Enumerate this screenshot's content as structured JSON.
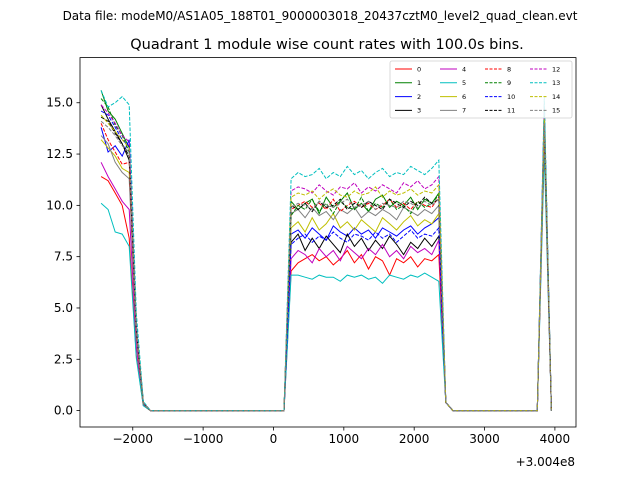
{
  "chart_data": {
    "type": "line",
    "subtitle": "Data file: modeM0/AS1A05_188T01_9000003018_20437cztM0_level2_quad_clean.evt",
    "title": "Quadrant 1 module wise count rates with 100.0s bins.",
    "xlabel": "",
    "ylabel": "",
    "x_offset_label": "+3.004e8",
    "xlim": [
      -2750,
      4300
    ],
    "ylim": [
      -0.8,
      17.2
    ],
    "x_ticks": [
      -2000,
      -1000,
      0,
      1000,
      2000,
      3000,
      4000
    ],
    "x_tick_labels": [
      "−2000",
      "−1000",
      "0",
      "1000",
      "2000",
      "3000",
      "4000"
    ],
    "y_ticks": [
      0,
      2.5,
      5,
      7.5,
      10,
      12.5,
      15
    ],
    "y_tick_labels": [
      "0.0",
      "2.5",
      "5.0",
      "7.5",
      "10.0",
      "12.5",
      "15.0"
    ],
    "legend_position": "top-right",
    "x": [
      -2450,
      -2350,
      -2250,
      -2150,
      -2050,
      -1950,
      -1850,
      -1750,
      -1650,
      -1550,
      -1450,
      -1350,
      -1250,
      -1150,
      -1050,
      -950,
      -850,
      -750,
      -650,
      -550,
      -450,
      -350,
      -250,
      -150,
      -50,
      50,
      150,
      250,
      350,
      450,
      550,
      650,
      750,
      850,
      950,
      1050,
      1150,
      1250,
      1350,
      1450,
      1550,
      1650,
      1750,
      1850,
      1950,
      2050,
      2150,
      2250,
      2350,
      2450,
      2550,
      2650,
      2750,
      2850,
      2950,
      3050,
      3150,
      3250,
      3350,
      3450,
      3550,
      3650,
      3750,
      3850,
      3950
    ],
    "active_segments": [
      {
        "start": 0,
        "end": 4,
        "ramp": [
          3.2,
          0.4,
          0
        ]
      },
      {
        "start": 27,
        "end": 48,
        "ramp": [
          0.4,
          0
        ]
      },
      {
        "start": 63,
        "end": 63,
        "ramp": []
      }
    ],
    "series": [
      {
        "name": "0",
        "color": "#ff0000",
        "dash": "solid",
        "segments": [
          [
            11.4,
            11.2,
            10.6,
            10.0,
            8.4
          ],
          [
            6.8,
            7.2,
            7.4,
            7.6,
            7.3,
            7.5,
            7.1,
            7.4,
            7.8,
            7.2,
            7.6,
            6.9,
            7.5,
            7.3,
            6.6,
            7.4,
            7.2,
            7.5,
            7.0,
            7.4,
            7.3,
            7.6
          ],
          [
            13.8
          ]
        ]
      },
      {
        "name": "1",
        "color": "#008000",
        "dash": "solid",
        "segments": [
          [
            15.6,
            14.6,
            14.2,
            13.5,
            12.8
          ],
          [
            10.2,
            9.8,
            10.1,
            10.3,
            9.6,
            10.4,
            9.9,
            10.2,
            10.6,
            9.8,
            10.1,
            9.7,
            10.3,
            10.5,
            9.9,
            10.2,
            10.0,
            10.4,
            9.8,
            10.3,
            10.1,
            10.6
          ],
          [
            14.8
          ]
        ]
      },
      {
        "name": "2",
        "color": "#0000ff",
        "dash": "solid",
        "segments": [
          [
            13.8,
            12.6,
            12.9,
            12.4,
            13.2
          ],
          [
            8.6,
            8.8,
            8.4,
            8.9,
            8.6,
            8.3,
            9.0,
            8.7,
            8.5,
            8.9,
            8.6,
            8.8,
            8.4,
            8.9,
            8.7,
            8.5,
            8.8,
            9.0,
            8.6,
            8.9,
            9.1,
            9.4
          ],
          [
            14.4
          ]
        ]
      },
      {
        "name": "3",
        "color": "#000000",
        "dash": "solid",
        "segments": [
          [
            14.9,
            14.2,
            13.6,
            13.0,
            12.2
          ],
          [
            8.2,
            8.6,
            7.8,
            8.4,
            7.9,
            8.5,
            8.1,
            7.7,
            8.6,
            8.0,
            8.4,
            7.8,
            8.3,
            7.9,
            8.5,
            8.1,
            7.6,
            8.2,
            7.9,
            8.4,
            8.0,
            8.5
          ],
          [
            14.1
          ]
        ]
      },
      {
        "name": "4",
        "color": "#bf00bf",
        "dash": "solid",
        "segments": [
          [
            12.1,
            11.4,
            10.8,
            10.2,
            9.8
          ],
          [
            7.4,
            7.8,
            7.6,
            7.2,
            7.9,
            7.5,
            7.8,
            7.3,
            8.0,
            7.7,
            7.4,
            7.9,
            7.6,
            8.1,
            7.5,
            7.8,
            7.4,
            8.0,
            7.7,
            7.9,
            7.6,
            8.3
          ],
          [
            13.2
          ]
        ]
      },
      {
        "name": "5",
        "color": "#00bfbf",
        "dash": "solid",
        "segments": [
          [
            10.1,
            9.8,
            8.7,
            8.6,
            8.0
          ],
          [
            6.6,
            6.6,
            6.5,
            6.4,
            6.6,
            6.5,
            6.5,
            6.3,
            6.6,
            6.5,
            6.6,
            6.4,
            6.5,
            6.2,
            6.6,
            6.5,
            6.4,
            6.6,
            6.5,
            6.7,
            6.5,
            6.3
          ],
          [
            12.6
          ]
        ]
      },
      {
        "name": "6",
        "color": "#bfbf00",
        "dash": "solid",
        "segments": [
          [
            13.2,
            12.8,
            12.4,
            11.8,
            11.6
          ],
          [
            8.9,
            9.2,
            8.7,
            9.4,
            8.8,
            9.1,
            9.6,
            8.9,
            9.2,
            8.8,
            9.3,
            9.0,
            8.7,
            9.4,
            9.1,
            8.8,
            9.2,
            9.5,
            9.0,
            9.3,
            9.1,
            9.6
          ],
          [
            14.0
          ]
        ]
      },
      {
        "name": "7",
        "color": "#808080",
        "dash": "solid",
        "segments": [
          [
            13.4,
            13.0,
            12.1,
            11.6,
            11.3
          ],
          [
            9.6,
            9.8,
            9.4,
            9.9,
            9.5,
            9.7,
            9.3,
            9.8,
            9.6,
            9.9,
            9.4,
            9.7,
            9.5,
            9.8,
            9.6,
            9.3,
            9.9,
            9.7,
            9.5,
            9.8,
            9.6,
            10.0
          ],
          [
            13.5
          ]
        ]
      },
      {
        "name": "8",
        "color": "#ff0000",
        "dash": "dashed",
        "segments": [
          [
            14.0,
            13.2,
            12.6,
            12.0,
            12.1
          ],
          [
            9.8,
            10.0,
            10.2,
            9.9,
            10.1,
            9.8,
            10.3,
            9.7,
            10.0,
            10.2,
            9.9,
            10.1,
            9.8,
            10.0,
            10.3,
            9.9,
            10.1,
            9.8,
            10.2,
            10.0,
            9.9,
            10.4
          ],
          [
            13.8
          ]
        ]
      },
      {
        "name": "9",
        "color": "#008000",
        "dash": "dashed",
        "segments": [
          [
            15.2,
            14.8,
            13.9,
            13.4,
            12.6
          ],
          [
            9.5,
            10.0,
            9.8,
            10.3,
            9.7,
            10.1,
            9.6,
            10.2,
            9.9,
            9.8,
            10.4,
            9.7,
            10.1,
            9.9,
            10.3,
            9.8,
            10.0,
            9.6,
            10.2,
            9.9,
            10.1,
            10.5
          ],
          [
            14.5
          ]
        ]
      },
      {
        "name": "10",
        "color": "#0000ff",
        "dash": "dashed",
        "segments": [
          [
            14.6,
            14.4,
            13.8,
            13.2,
            12.9
          ],
          [
            8.1,
            8.4,
            8.6,
            8.2,
            8.5,
            8.3,
            8.7,
            8.4,
            8.2,
            8.6,
            8.5,
            8.3,
            8.7,
            8.4,
            8.6,
            8.2,
            8.5,
            8.8,
            8.4,
            8.6,
            8.5,
            8.9
          ],
          [
            14.2
          ]
        ]
      },
      {
        "name": "11",
        "color": "#000000",
        "dash": "dashed",
        "segments": [
          [
            14.3,
            14.1,
            13.5,
            13.0,
            12.4
          ],
          [
            10.0,
            9.8,
            10.1,
            9.7,
            10.2,
            9.9,
            10.0,
            10.3,
            9.8,
            10.1,
            9.9,
            10.2,
            10.0,
            9.8,
            10.3,
            10.1,
            9.9,
            10.2,
            10.0,
            10.4,
            10.1,
            10.3
          ],
          [
            14.0
          ]
        ]
      },
      {
        "name": "12",
        "color": "#bf00bf",
        "dash": "dashed",
        "segments": [
          [
            14.9,
            14.5,
            14.0,
            13.4,
            13.1
          ],
          [
            10.7,
            10.9,
            10.8,
            10.6,
            11.0,
            10.7,
            10.5,
            10.9,
            10.8,
            11.1,
            10.6,
            10.9,
            10.7,
            11.0,
            10.8,
            10.6,
            11.1,
            10.9,
            11.2,
            10.8,
            11.0,
            11.4
          ],
          [
            15.0
          ]
        ]
      },
      {
        "name": "13",
        "color": "#00bfbf",
        "dash": "dashed",
        "segments": [
          [
            15.6,
            14.8,
            15.0,
            15.3,
            14.9
          ],
          [
            11.3,
            11.6,
            11.4,
            11.5,
            11.8,
            11.3,
            11.6,
            11.4,
            11.9,
            11.5,
            11.7,
            11.3,
            11.6,
            11.8,
            11.4,
            11.6,
            11.5,
            11.9,
            11.7,
            11.5,
            11.8,
            12.2
          ],
          [
            15.3
          ]
        ]
      },
      {
        "name": "14",
        "color": "#bfbf00",
        "dash": "dashed",
        "segments": [
          [
            14.4,
            14.0,
            13.6,
            13.2,
            12.8
          ],
          [
            10.4,
            10.6,
            10.5,
            10.7,
            10.3,
            10.6,
            10.8,
            10.5,
            10.4,
            10.7,
            10.5,
            10.6,
            10.9,
            10.4,
            10.7,
            10.5,
            10.6,
            10.8,
            10.5,
            10.7,
            10.6,
            11.0
          ],
          [
            14.2
          ]
        ]
      },
      {
        "name": "15",
        "color": "#808080",
        "dash": "dashed",
        "segments": [
          [
            14.1,
            13.8,
            13.4,
            12.9,
            12.6
          ],
          [
            9.9,
            10.1,
            10.0,
            9.8,
            10.2,
            10.0,
            9.9,
            10.1,
            10.3,
            9.9,
            10.0,
            10.2,
            9.8,
            10.1,
            10.0,
            9.9,
            10.2,
            10.1,
            9.9,
            10.2,
            10.0,
            10.3
          ],
          [
            14.0
          ]
        ]
      }
    ]
  }
}
